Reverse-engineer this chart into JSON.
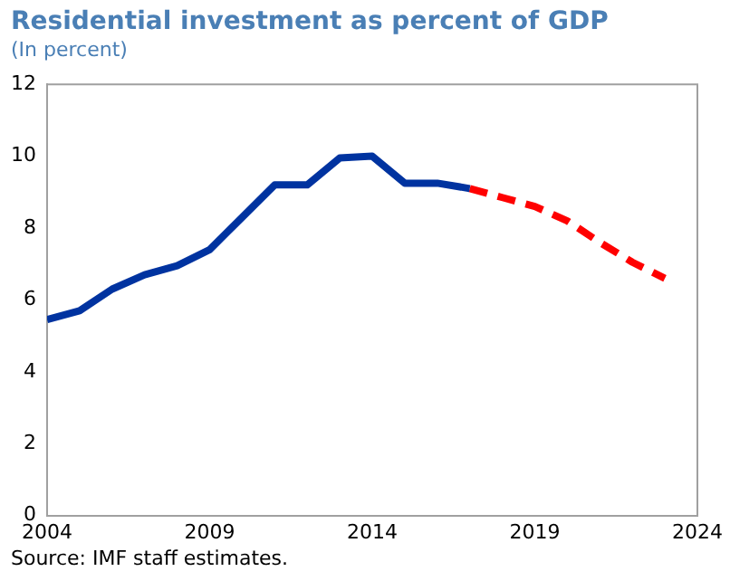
{
  "chart_data": {
    "type": "line",
    "title": "Residential investment as percent of GDP",
    "subtitle": "(In percent)",
    "annotations": [
      "Source: IMF staff estimates."
    ],
    "series": [
      {
        "color": "#0033a0",
        "line_style": "solid",
        "x": [
          2004,
          2005,
          2006,
          2007,
          2008,
          2009,
          2010,
          2011,
          2012,
          2013,
          2014,
          2015,
          2016,
          2017
        ],
        "values": [
          5.45,
          5.7,
          6.3,
          6.7,
          6.95,
          7.4,
          8.3,
          9.2,
          9.2,
          9.95,
          10.0,
          9.25,
          9.25,
          9.1
        ]
      },
      {
        "color": "#ff0000",
        "line_style": "dashed",
        "x": [
          2017,
          2018,
          2019,
          2020,
          2021,
          2022,
          2023
        ],
        "values": [
          9.1,
          8.85,
          8.6,
          8.2,
          7.6,
          7.05,
          6.6
        ]
      }
    ],
    "xlim": [
      2004,
      2024
    ],
    "xticks": [
      2004,
      2009,
      2014,
      2019,
      2024
    ],
    "ylim": [
      0,
      12
    ],
    "yticks": [
      0,
      2,
      4,
      6,
      8,
      10,
      12
    ],
    "grid": false,
    "legend": false,
    "marker": "none"
  }
}
